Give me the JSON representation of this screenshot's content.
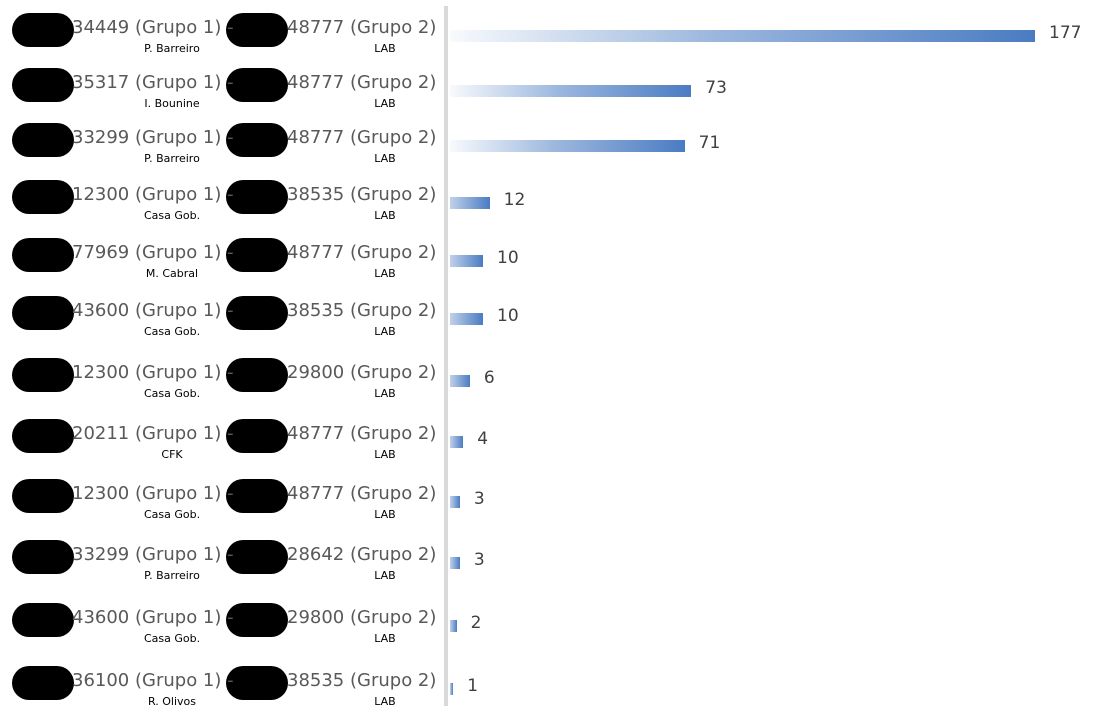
{
  "chart_data": {
    "type": "bar",
    "orientation": "horizontal",
    "bar_color": "#4a7cc2",
    "categories": [
      {
        "group1": "34449 (Grupo 1) -",
        "group1_name": "P. Barreiro",
        "group2": "48777 (Grupo 2)",
        "group2_name": "LAB"
      },
      {
        "group1": "35317 (Grupo 1) -",
        "group1_name": "I. Bounine",
        "group2": "48777 (Grupo 2)",
        "group2_name": "LAB"
      },
      {
        "group1": "33299 (Grupo 1) -",
        "group1_name": "P. Barreiro",
        "group2": "48777 (Grupo 2)",
        "group2_name": "LAB"
      },
      {
        "group1": "12300 (Grupo 1) -",
        "group1_name": "Casa Gob.",
        "group2": "38535 (Grupo 2)",
        "group2_name": "LAB"
      },
      {
        "group1": "77969 (Grupo 1) -",
        "group1_name": "M. Cabral",
        "group2": "48777 (Grupo 2)",
        "group2_name": "LAB"
      },
      {
        "group1": "43600 (Grupo 1) -",
        "group1_name": "Casa Gob.",
        "group2": "38535 (Grupo 2)",
        "group2_name": "LAB"
      },
      {
        "group1": "12300 (Grupo 1) -",
        "group1_name": "Casa Gob.",
        "group2": "29800 (Grupo 2)",
        "group2_name": "LAB"
      },
      {
        "group1": "20211 (Grupo 1) -",
        "group1_name": "CFK",
        "group2": "48777 (Grupo 2)",
        "group2_name": "LAB"
      },
      {
        "group1": "12300 (Grupo 1) -",
        "group1_name": "Casa Gob.",
        "group2": "48777 (Grupo 2)",
        "group2_name": "LAB"
      },
      {
        "group1": "33299 (Grupo 1) -",
        "group1_name": "P. Barreiro",
        "group2": "28642 (Grupo 2)",
        "group2_name": "LAB"
      },
      {
        "group1": "43600 (Grupo 1) -",
        "group1_name": "Casa Gob.",
        "group2": "29800 (Grupo 2)",
        "group2_name": "LAB"
      },
      {
        "group1": "36100 (Grupo 1) -",
        "group1_name": "R. Olivos",
        "group2": "38535 (Grupo 2)",
        "group2_name": "LAB"
      }
    ],
    "values": [
      177,
      73,
      71,
      12,
      10,
      10,
      6,
      4,
      3,
      3,
      2,
      1
    ],
    "xlim": [
      0,
      177
    ],
    "grid": false,
    "legend": "none"
  }
}
